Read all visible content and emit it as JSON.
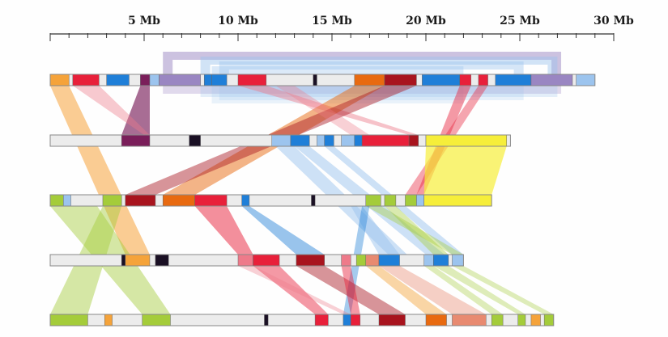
{
  "scale": {
    "unit": "Mb",
    "major_ticks": [
      {
        "value": 5,
        "label": "5 Mb"
      },
      {
        "value": 10,
        "label": "10 Mb"
      },
      {
        "value": 15,
        "label": "15 Mb"
      },
      {
        "value": 20,
        "label": "20 Mb"
      },
      {
        "value": 25,
        "label": "25 Mb"
      },
      {
        "value": 30,
        "label": "30 Mb"
      }
    ],
    "max_mb": 30,
    "minor_step_mb": 1
  },
  "colors": {
    "orange": "#f5a33a",
    "red": "#e8203a",
    "blue": "#1f7fd8",
    "lightblue": "#9cc4ee",
    "purple": "#7a1e5a",
    "lavender": "#9a86c2",
    "darkorange": "#e86a10",
    "darkred": "#a8141e",
    "black": "#1a1024",
    "lime": "#a4cc3a",
    "yellow": "#f6ee3a",
    "pink": "#ee7a8a",
    "salmon": "#e88a70",
    "grey": "#ececec"
  },
  "chromosomes": [
    {
      "id": "chr-1",
      "length_mb": 29,
      "blocks": [
        {
          "start": 0,
          "end": 1,
          "color": "orange"
        },
        {
          "start": 1.2,
          "end": 2.6,
          "color": "red"
        },
        {
          "start": 3,
          "end": 4.2,
          "color": "blue"
        },
        {
          "start": 4.8,
          "end": 5.3,
          "color": "purple"
        },
        {
          "start": 5.3,
          "end": 5.8,
          "color": "lightblue"
        },
        {
          "start": 5.8,
          "end": 8,
          "color": "lavender"
        },
        {
          "start": 8.2,
          "end": 8.6,
          "color": "blue"
        },
        {
          "start": 8.6,
          "end": 9.4,
          "color": "blue"
        },
        {
          "start": 10,
          "end": 11.5,
          "color": "red"
        },
        {
          "start": 14,
          "end": 14.2,
          "color": "black"
        },
        {
          "start": 16.2,
          "end": 17.8,
          "color": "darkorange"
        },
        {
          "start": 17.8,
          "end": 19.5,
          "color": "darkred"
        },
        {
          "start": 19.8,
          "end": 21.8,
          "color": "blue"
        },
        {
          "start": 21.8,
          "end": 22.4,
          "color": "red"
        },
        {
          "start": 22.8,
          "end": 23.3,
          "color": "red"
        },
        {
          "start": 23.7,
          "end": 25.6,
          "color": "blue"
        },
        {
          "start": 25.6,
          "end": 27.8,
          "color": "lavender"
        },
        {
          "start": 28,
          "end": 29,
          "color": "lightblue"
        }
      ]
    },
    {
      "id": "chr-2",
      "length_mb": 24.5,
      "blocks": [
        {
          "start": 3.8,
          "end": 5.3,
          "color": "purple"
        },
        {
          "start": 7.4,
          "end": 8,
          "color": "black"
        },
        {
          "start": 11.8,
          "end": 12.8,
          "color": "lightblue"
        },
        {
          "start": 12.8,
          "end": 13.8,
          "color": "blue"
        },
        {
          "start": 14.2,
          "end": 14.6,
          "color": "lightblue"
        },
        {
          "start": 14.6,
          "end": 15.1,
          "color": "blue"
        },
        {
          "start": 15.5,
          "end": 16.2,
          "color": "lightblue"
        },
        {
          "start": 16.2,
          "end": 16.6,
          "color": "blue"
        },
        {
          "start": 16.6,
          "end": 19.1,
          "color": "red"
        },
        {
          "start": 19.1,
          "end": 19.6,
          "color": "darkred"
        },
        {
          "start": 19.6,
          "end": 20,
          "color": "grey"
        },
        {
          "start": 20,
          "end": 24.3,
          "color": "yellow"
        }
      ]
    },
    {
      "id": "chr-3",
      "length_mb": 23.5,
      "blocks": [
        {
          "start": 0,
          "end": 0.7,
          "color": "lime"
        },
        {
          "start": 0.7,
          "end": 1.1,
          "color": "lightblue"
        },
        {
          "start": 2.8,
          "end": 3.8,
          "color": "lime"
        },
        {
          "start": 4,
          "end": 5.6,
          "color": "darkred"
        },
        {
          "start": 6,
          "end": 7.7,
          "color": "darkorange"
        },
        {
          "start": 7.7,
          "end": 9.4,
          "color": "red"
        },
        {
          "start": 10.2,
          "end": 10.6,
          "color": "blue"
        },
        {
          "start": 13.9,
          "end": 14.1,
          "color": "black"
        },
        {
          "start": 16.8,
          "end": 17.6,
          "color": "lime"
        },
        {
          "start": 17.8,
          "end": 18.4,
          "color": "lime"
        },
        {
          "start": 18.9,
          "end": 19.5,
          "color": "lime"
        },
        {
          "start": 19.5,
          "end": 19.9,
          "color": "lightblue"
        },
        {
          "start": 19.9,
          "end": 23.5,
          "color": "yellow"
        }
      ]
    },
    {
      "id": "chr-4",
      "length_mb": 22,
      "blocks": [
        {
          "start": 3.8,
          "end": 4,
          "color": "black"
        },
        {
          "start": 4,
          "end": 5.3,
          "color": "orange"
        },
        {
          "start": 5.6,
          "end": 6.3,
          "color": "black"
        },
        {
          "start": 10,
          "end": 10.8,
          "color": "pink"
        },
        {
          "start": 10.8,
          "end": 12.2,
          "color": "red"
        },
        {
          "start": 13.1,
          "end": 14.6,
          "color": "darkred"
        },
        {
          "start": 15.5,
          "end": 16,
          "color": "pink"
        },
        {
          "start": 16.3,
          "end": 16.8,
          "color": "lime"
        },
        {
          "start": 16.8,
          "end": 17.5,
          "color": "salmon"
        },
        {
          "start": 17.5,
          "end": 18.6,
          "color": "blue"
        },
        {
          "start": 19.9,
          "end": 20.4,
          "color": "lightblue"
        },
        {
          "start": 20.4,
          "end": 21.2,
          "color": "blue"
        },
        {
          "start": 21.4,
          "end": 22,
          "color": "lightblue"
        }
      ]
    },
    {
      "id": "chr-5",
      "length_mb": 26.8,
      "blocks": [
        {
          "start": 0,
          "end": 2,
          "color": "lime"
        },
        {
          "start": 2.9,
          "end": 3.3,
          "color": "orange"
        },
        {
          "start": 4.9,
          "end": 6.4,
          "color": "lime"
        },
        {
          "start": 11.4,
          "end": 11.6,
          "color": "black"
        },
        {
          "start": 14.1,
          "end": 14.8,
          "color": "red"
        },
        {
          "start": 15.6,
          "end": 16,
          "color": "blue"
        },
        {
          "start": 16,
          "end": 16.5,
          "color": "red"
        },
        {
          "start": 17.5,
          "end": 18.9,
          "color": "darkred"
        },
        {
          "start": 20,
          "end": 21.1,
          "color": "darkorange"
        },
        {
          "start": 21.4,
          "end": 23.2,
          "color": "salmon"
        },
        {
          "start": 23.5,
          "end": 24.1,
          "color": "lime"
        },
        {
          "start": 24.9,
          "end": 25.3,
          "color": "lime"
        },
        {
          "start": 25.6,
          "end": 26.1,
          "color": "orange"
        },
        {
          "start": 26.3,
          "end": 26.8,
          "color": "lime"
        }
      ]
    }
  ],
  "links": [
    {
      "from": [
        0,
        0,
        1
      ],
      "to": [
        3,
        4,
        5.3
      ],
      "color": "orange",
      "opacity": 0.55
    },
    {
      "from": [
        0,
        4.8,
        5.3
      ],
      "to": [
        1,
        3.8,
        5.3
      ],
      "color": "purple",
      "opacity": 0.65
    },
    {
      "from": [
        0,
        1.2,
        2.6
      ],
      "to": [
        1,
        5,
        5.3
      ],
      "color": "pink",
      "opacity": 0.4
    },
    {
      "from": [
        0,
        10,
        11.5
      ],
      "to": [
        1,
        19.1,
        19.6
      ],
      "color": "pink",
      "opacity": 0.45
    },
    {
      "from": [
        0,
        16.2,
        17.8
      ],
      "to": [
        2,
        6,
        7.7
      ],
      "color": "darkorange",
      "opacity": 0.5
    },
    {
      "from": [
        0,
        17.8,
        19.5
      ],
      "to": [
        2,
        4,
        5.6
      ],
      "color": "darkred",
      "opacity": 0.45
    },
    {
      "from": [
        0,
        21.8,
        22.4
      ],
      "to": [
        2,
        19.5,
        19.9
      ],
      "color": "red",
      "opacity": 0.45
    },
    {
      "from": [
        0,
        22.8,
        23.3
      ],
      "to": [
        2,
        18.9,
        19.5
      ],
      "color": "red",
      "opacity": 0.4
    },
    {
      "from": [
        0,
        12,
        13
      ],
      "to": [
        1,
        16,
        17
      ],
      "color": "pink",
      "opacity": 0.35
    },
    {
      "from": [
        1,
        20,
        24.3
      ],
      "to": [
        2,
        19.9,
        23.5
      ],
      "color": "yellow",
      "opacity": 0.7
    },
    {
      "from": [
        1,
        12,
        13
      ],
      "to": [
        3,
        18,
        19
      ],
      "color": "lightblue",
      "opacity": 0.5
    },
    {
      "from": [
        1,
        13,
        13.8
      ],
      "to": [
        3,
        20,
        21
      ],
      "color": "lightblue",
      "opacity": 0.5
    },
    {
      "from": [
        1,
        14.6,
        15.1
      ],
      "to": [
        3,
        21.4,
        22
      ],
      "color": "lightblue",
      "opacity": 0.5
    },
    {
      "from": [
        2,
        0,
        2.5
      ],
      "to": [
        4,
        4.9,
        6.4
      ],
      "color": "lime",
      "opacity": 0.45
    },
    {
      "from": [
        2,
        2.8,
        3.8
      ],
      "to": [
        4,
        0,
        2
      ],
      "color": "lime",
      "opacity": 0.45
    },
    {
      "from": [
        2,
        7.7,
        9.4
      ],
      "to": [
        3,
        10,
        10.8
      ],
      "color": "red",
      "opacity": 0.5
    },
    {
      "from": [
        2,
        10.2,
        10.6
      ],
      "to": [
        3,
        13.1,
        14.6
      ],
      "color": "blue",
      "opacity": 0.45
    },
    {
      "from": [
        2,
        16.8,
        17.6
      ],
      "to": [
        3,
        21.4,
        22
      ],
      "color": "lime",
      "opacity": 0.4
    },
    {
      "from": [
        2,
        17.8,
        18.4
      ],
      "to": [
        3,
        20.4,
        21.2
      ],
      "color": "lime",
      "opacity": 0.4
    },
    {
      "from": [
        2,
        16,
        16.6
      ],
      "to": [
        3,
        17.5,
        18.6
      ],
      "color": "lightblue",
      "opacity": 0.5
    },
    {
      "from": [
        2,
        16.6,
        17
      ],
      "to": [
        4,
        15.6,
        16
      ],
      "color": "blue",
      "opacity": 0.4
    },
    {
      "from": [
        3,
        10.8,
        12.2
      ],
      "to": [
        4,
        14.1,
        14.8
      ],
      "color": "red",
      "opacity": 0.45
    },
    {
      "from": [
        3,
        13.1,
        14.6
      ],
      "to": [
        4,
        17.5,
        18.9
      ],
      "color": "darkred",
      "opacity": 0.45
    },
    {
      "from": [
        3,
        16.8,
        17.5
      ],
      "to": [
        4,
        20,
        21.1
      ],
      "color": "orange",
      "opacity": 0.45
    },
    {
      "from": [
        3,
        17.5,
        18.6
      ],
      "to": [
        4,
        21.4,
        23.2
      ],
      "color": "salmon",
      "opacity": 0.4
    },
    {
      "from": [
        3,
        15.5,
        16
      ],
      "to": [
        4,
        16,
        16.5
      ],
      "color": "red",
      "opacity": 0.45
    },
    {
      "from": [
        3,
        19.9,
        20.4
      ],
      "to": [
        4,
        23.5,
        24.1
      ],
      "color": "lime",
      "opacity": 0.35
    },
    {
      "from": [
        3,
        20.4,
        21.2
      ],
      "to": [
        4,
        24.9,
        25.3
      ],
      "color": "lime",
      "opacity": 0.35
    },
    {
      "from": [
        3,
        21.4,
        22
      ],
      "to": [
        4,
        26.3,
        26.8
      ],
      "color": "lime",
      "opacity": 0.35
    },
    {
      "from": [
        3,
        10,
        10.8
      ],
      "to": [
        4,
        15.6,
        16
      ],
      "color": "pink",
      "opacity": 0.35
    }
  ],
  "arches": [
    {
      "start": 6,
      "end": 27.2,
      "color": "lavender",
      "opacity": 0.5
    },
    {
      "start": 8,
      "end": 27,
      "color": "lightblue",
      "opacity": 0.45
    },
    {
      "start": 9,
      "end": 25.2,
      "color": "lightblue",
      "opacity": 0.4
    },
    {
      "start": 8.6,
      "end": 22,
      "color": "lightblue",
      "opacity": 0.35
    }
  ]
}
